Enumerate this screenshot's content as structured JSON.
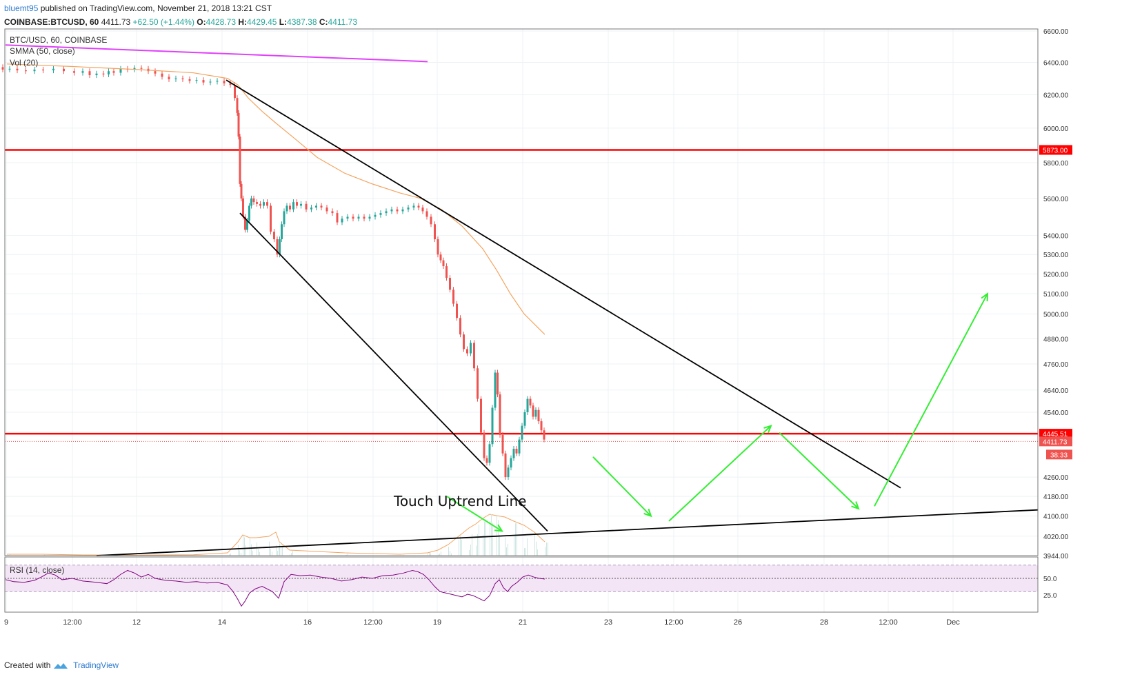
{
  "header": {
    "username": "bluemt95",
    "published_text": "published on TradingView.com, November 21, 2018 13:21 CST",
    "symbol": "COINBASE:BTCUSD, 60",
    "last": "4411.73",
    "change": "+62.50 (+1.44%)",
    "o_label": "O:",
    "o_value": "4428.73",
    "h_label": "H:",
    "h_value": "4429.45",
    "l_label": "L:",
    "l_value": "4387.38",
    "c_label": "C:",
    "c_value": "4411.73"
  },
  "legend": {
    "title": "BTC/USD, 60, COINBASE",
    "smma": "SMMA (50, close)",
    "vol": "Vol (20)",
    "rsi": "RSI (14, close)"
  },
  "annotation": "Touch Uptrend Line",
  "footer": {
    "created_with": "Created with",
    "brand": "TradingView"
  },
  "colors": {
    "up": "#26a69a",
    "down": "#ef5350",
    "smma": "#f4a460",
    "hline": "#ff0000",
    "trend": "#000000",
    "magenta": "#e040fb",
    "arrow": "#33ee33",
    "rsi": "#800080",
    "rsi_band": "#f3e5f5"
  },
  "chart_data": {
    "type": "candlestick",
    "price_axis_ticks": [
      6600,
      6400,
      6200,
      6000,
      5800,
      5600,
      5400,
      5300,
      5200,
      5100,
      5000,
      4880,
      4760,
      4640,
      4540,
      4260,
      4180,
      4100,
      4020,
      3944
    ],
    "price_axis_tick_labels": [
      "6600.00",
      "6400.00",
      "6200.00",
      "6000.00",
      "5800.00",
      "5600.00",
      "5400.00",
      "5300.00",
      "5200.00",
      "5100.00",
      "5000.00",
      "4880.00",
      "4760.00",
      "4640.00",
      "4540.00",
      "4260.00",
      "4180.00",
      "4100.00",
      "4020.00",
      "3944.00"
    ],
    "price_labels": [
      {
        "value": 5873.0,
        "text": "5873.00",
        "color": "#ff0000"
      },
      {
        "value": 4445.51,
        "text": "4445.51",
        "color": "#ff0000"
      },
      {
        "value": 4411.73,
        "text": "4411.73",
        "color": "#ef5350"
      }
    ],
    "countdown": "38:33",
    "horizontal_lines": [
      5873.0,
      4445.51
    ],
    "rsi_ticks": [
      50.0,
      25.0
    ],
    "rsi_tick_labels": [
      "50.0",
      "25.0"
    ],
    "time_ticks": [
      "9",
      "12:00",
      "12",
      "14",
      "16",
      "12:00",
      "19",
      "21",
      "23",
      "12:00",
      "26",
      "28",
      "12:00",
      "Dec"
    ],
    "price_path": [
      [
        0,
        6370
      ],
      [
        8,
        6355
      ],
      [
        20,
        6360
      ],
      [
        30,
        6350
      ],
      [
        45,
        6345
      ],
      [
        55,
        6355
      ],
      [
        70,
        6350
      ],
      [
        85,
        6360
      ],
      [
        100,
        6345
      ],
      [
        115,
        6335
      ],
      [
        125,
        6345
      ],
      [
        135,
        6320
      ],
      [
        145,
        6330
      ],
      [
        155,
        6325
      ],
      [
        160,
        6345
      ],
      [
        170,
        6335
      ],
      [
        180,
        6360
      ],
      [
        190,
        6355
      ],
      [
        200,
        6365
      ],
      [
        210,
        6360
      ],
      [
        220,
        6345
      ],
      [
        230,
        6330
      ],
      [
        240,
        6310
      ],
      [
        250,
        6295
      ],
      [
        260,
        6300
      ],
      [
        270,
        6295
      ],
      [
        280,
        6285
      ],
      [
        290,
        6290
      ],
      [
        300,
        6275
      ],
      [
        310,
        6280
      ],
      [
        320,
        6285
      ],
      [
        330,
        6270
      ],
      [
        338,
        6260
      ],
      [
        343,
        6180
      ],
      [
        345,
        6090
      ],
      [
        347,
        5950
      ],
      [
        349,
        5680
      ],
      [
        351,
        5600
      ],
      [
        354,
        5500
      ],
      [
        357,
        5430
      ],
      [
        360,
        5480
      ],
      [
        363,
        5560
      ],
      [
        366,
        5600
      ],
      [
        370,
        5580
      ],
      [
        375,
        5570
      ],
      [
        380,
        5560
      ],
      [
        385,
        5580
      ],
      [
        390,
        5560
      ],
      [
        395,
        5420
      ],
      [
        400,
        5380
      ],
      [
        404,
        5300
      ],
      [
        407,
        5380
      ],
      [
        410,
        5460
      ],
      [
        414,
        5530
      ],
      [
        418,
        5560
      ],
      [
        423,
        5540
      ],
      [
        428,
        5580
      ],
      [
        433,
        5560
      ],
      [
        440,
        5570
      ],
      [
        448,
        5540
      ],
      [
        455,
        5550
      ],
      [
        462,
        5560
      ],
      [
        470,
        5550
      ],
      [
        478,
        5530
      ],
      [
        486,
        5520
      ],
      [
        492,
        5470
      ],
      [
        500,
        5490
      ],
      [
        508,
        5500
      ],
      [
        516,
        5490
      ],
      [
        524,
        5500
      ],
      [
        532,
        5490
      ],
      [
        540,
        5500
      ],
      [
        548,
        5510
      ],
      [
        556,
        5520
      ],
      [
        564,
        5530
      ],
      [
        572,
        5540
      ],
      [
        580,
        5530
      ],
      [
        588,
        5540
      ],
      [
        596,
        5550
      ],
      [
        604,
        5560
      ],
      [
        610,
        5550
      ],
      [
        616,
        5530
      ],
      [
        622,
        5500
      ],
      [
        628,
        5460
      ],
      [
        633,
        5380
      ],
      [
        637,
        5300
      ],
      [
        641,
        5270
      ],
      [
        645,
        5240
      ],
      [
        650,
        5180
      ],
      [
        655,
        5120
      ],
      [
        660,
        5050
      ],
      [
        665,
        4980
      ],
      [
        670,
        4900
      ],
      [
        675,
        4830
      ],
      [
        680,
        4810
      ],
      [
        685,
        4860
      ],
      [
        690,
        4740
      ],
      [
        695,
        4600
      ],
      [
        700,
        4450
      ],
      [
        704,
        4340
      ],
      [
        708,
        4320
      ],
      [
        712,
        4400
      ],
      [
        716,
        4560
      ],
      [
        720,
        4720
      ],
      [
        723,
        4620
      ],
      [
        727,
        4440
      ],
      [
        731,
        4360
      ],
      [
        735,
        4260
      ],
      [
        739,
        4300
      ],
      [
        743,
        4340
      ],
      [
        747,
        4380
      ],
      [
        751,
        4360
      ],
      [
        755,
        4420
      ],
      [
        759,
        4480
      ],
      [
        763,
        4540
      ],
      [
        767,
        4600
      ],
      [
        771,
        4570
      ],
      [
        775,
        4520
      ],
      [
        779,
        4550
      ],
      [
        783,
        4500
      ],
      [
        787,
        4460
      ],
      [
        791,
        4420
      ]
    ],
    "smma_path": [
      [
        10,
        6390
      ],
      [
        100,
        6375
      ],
      [
        200,
        6355
      ],
      [
        280,
        6335
      ],
      [
        330,
        6300
      ],
      [
        345,
        6260
      ],
      [
        360,
        6180
      ],
      [
        380,
        6100
      ],
      [
        400,
        6030
      ],
      [
        430,
        5930
      ],
      [
        460,
        5830
      ],
      [
        500,
        5740
      ],
      [
        540,
        5680
      ],
      [
        580,
        5630
      ],
      [
        610,
        5600
      ],
      [
        640,
        5540
      ],
      [
        670,
        5450
      ],
      [
        700,
        5330
      ],
      [
        720,
        5220
      ],
      [
        740,
        5100
      ],
      [
        760,
        5000
      ],
      [
        790,
        4900
      ]
    ],
    "volume_path": [
      [
        10,
        0.01
      ],
      [
        60,
        0.01
      ],
      [
        120,
        0.005
      ],
      [
        200,
        0.004
      ],
      [
        280,
        0.006
      ],
      [
        330,
        0.02
      ],
      [
        345,
        0.1
      ],
      [
        352,
        0.15
      ],
      [
        362,
        0.13
      ],
      [
        372,
        0.13
      ],
      [
        390,
        0.14
      ],
      [
        400,
        0.17
      ],
      [
        405,
        0.1
      ],
      [
        420,
        0.04
      ],
      [
        500,
        0.02
      ],
      [
        580,
        0.01
      ],
      [
        620,
        0.02
      ],
      [
        635,
        0.04
      ],
      [
        650,
        0.08
      ],
      [
        665,
        0.14
      ],
      [
        680,
        0.2
      ],
      [
        690,
        0.23
      ],
      [
        700,
        0.27
      ],
      [
        710,
        0.3
      ],
      [
        720,
        0.29
      ],
      [
        732,
        0.28
      ],
      [
        745,
        0.25
      ],
      [
        760,
        0.22
      ],
      [
        775,
        0.17
      ],
      [
        790,
        0.1
      ]
    ],
    "rsi_path": [
      [
        8,
        48
      ],
      [
        20,
        45
      ],
      [
        35,
        44
      ],
      [
        50,
        47
      ],
      [
        60,
        52
      ],
      [
        70,
        58
      ],
      [
        80,
        55
      ],
      [
        90,
        48
      ],
      [
        105,
        50
      ],
      [
        120,
        46
      ],
      [
        140,
        44
      ],
      [
        155,
        42
      ],
      [
        165,
        48
      ],
      [
        175,
        56
      ],
      [
        185,
        62
      ],
      [
        195,
        58
      ],
      [
        205,
        52
      ],
      [
        215,
        56
      ],
      [
        225,
        50
      ],
      [
        240,
        47
      ],
      [
        255,
        46
      ],
      [
        270,
        44
      ],
      [
        285,
        45
      ],
      [
        300,
        43
      ],
      [
        315,
        44
      ],
      [
        330,
        40
      ],
      [
        338,
        30
      ],
      [
        345,
        18
      ],
      [
        350,
        8
      ],
      [
        355,
        15
      ],
      [
        362,
        28
      ],
      [
        370,
        34
      ],
      [
        380,
        38
      ],
      [
        395,
        30
      ],
      [
        404,
        20
      ],
      [
        412,
        45
      ],
      [
        422,
        56
      ],
      [
        435,
        54
      ],
      [
        450,
        55
      ],
      [
        465,
        52
      ],
      [
        480,
        50
      ],
      [
        495,
        46
      ],
      [
        510,
        48
      ],
      [
        525,
        52
      ],
      [
        540,
        50
      ],
      [
        555,
        54
      ],
      [
        570,
        55
      ],
      [
        585,
        58
      ],
      [
        598,
        62
      ],
      [
        606,
        60
      ],
      [
        614,
        56
      ],
      [
        622,
        48
      ],
      [
        630,
        38
      ],
      [
        638,
        30
      ],
      [
        646,
        28
      ],
      [
        654,
        26
      ],
      [
        662,
        24
      ],
      [
        670,
        22
      ],
      [
        678,
        26
      ],
      [
        686,
        24
      ],
      [
        694,
        20
      ],
      [
        702,
        16
      ],
      [
        710,
        24
      ],
      [
        718,
        42
      ],
      [
        724,
        48
      ],
      [
        730,
        36
      ],
      [
        736,
        30
      ],
      [
        742,
        38
      ],
      [
        750,
        44
      ],
      [
        758,
        52
      ],
      [
        766,
        55
      ],
      [
        774,
        52
      ],
      [
        782,
        50
      ],
      [
        790,
        49
      ]
    ],
    "trendlines": [
      {
        "from": [
          8,
          6510
        ],
        "to": [
          620,
          6405
        ],
        "color": "#e040fb"
      },
      {
        "from": [
          328,
          6290
        ],
        "to": [
          1306,
          4215
        ],
        "color": "#000000"
      },
      {
        "from": [
          348,
          5520
        ],
        "to": [
          794,
          4040
        ],
        "color": "#000000"
      },
      {
        "from": [
          140,
          3944
        ],
        "to": [
          1505,
          4125
        ],
        "color": "#000000"
      }
    ],
    "arrows": [
      {
        "from": [
          648,
          4180
        ],
        "to": [
          728,
          4040
        ]
      },
      {
        "from": [
          860,
          4345
        ],
        "to": [
          944,
          4100
        ]
      },
      {
        "from": [
          970,
          4080
        ],
        "to": [
          1118,
          4480
        ]
      },
      {
        "from": [
          1130,
          4450
        ],
        "to": [
          1245,
          4130
        ]
      },
      {
        "from": [
          1268,
          4140
        ],
        "to": [
          1432,
          5100
        ]
      }
    ]
  }
}
